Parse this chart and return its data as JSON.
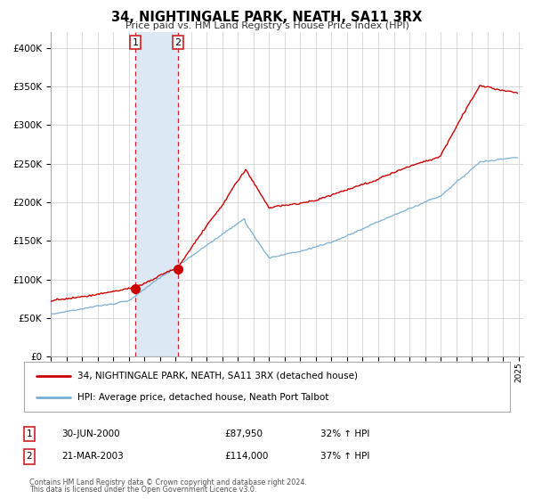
{
  "title": "34, NIGHTINGALE PARK, NEATH, SA11 3RX",
  "subtitle": "Price paid vs. HM Land Registry's House Price Index (HPI)",
  "hpi_label": "HPI: Average price, detached house, Neath Port Talbot",
  "property_label": "34, NIGHTINGALE PARK, NEATH, SA11 3RX (detached house)",
  "sale1_date": "30-JUN-2000",
  "sale1_price": "£87,950",
  "sale1_hpi": "32% ↑ HPI",
  "sale2_date": "21-MAR-2003",
  "sale2_price": "£114,000",
  "sale2_hpi": "37% ↑ HPI",
  "footer1": "Contains HM Land Registry data © Crown copyright and database right 2024.",
  "footer2": "This data is licensed under the Open Government Licence v3.0.",
  "red_color": "#cc0000",
  "blue_color": "#7bafd4",
  "shade_color": "#dce9f5",
  "grid_color": "#cccccc",
  "bg_color": "#ffffff",
  "marker_color": "#cc0000",
  "box_color": "#cc2222",
  "ylim_min": 0,
  "ylim_max": 420000,
  "sale1_yr": 2000.4167,
  "sale2_yr": 2003.1667,
  "sale1_price_val": 87950,
  "sale2_price_val": 114000
}
